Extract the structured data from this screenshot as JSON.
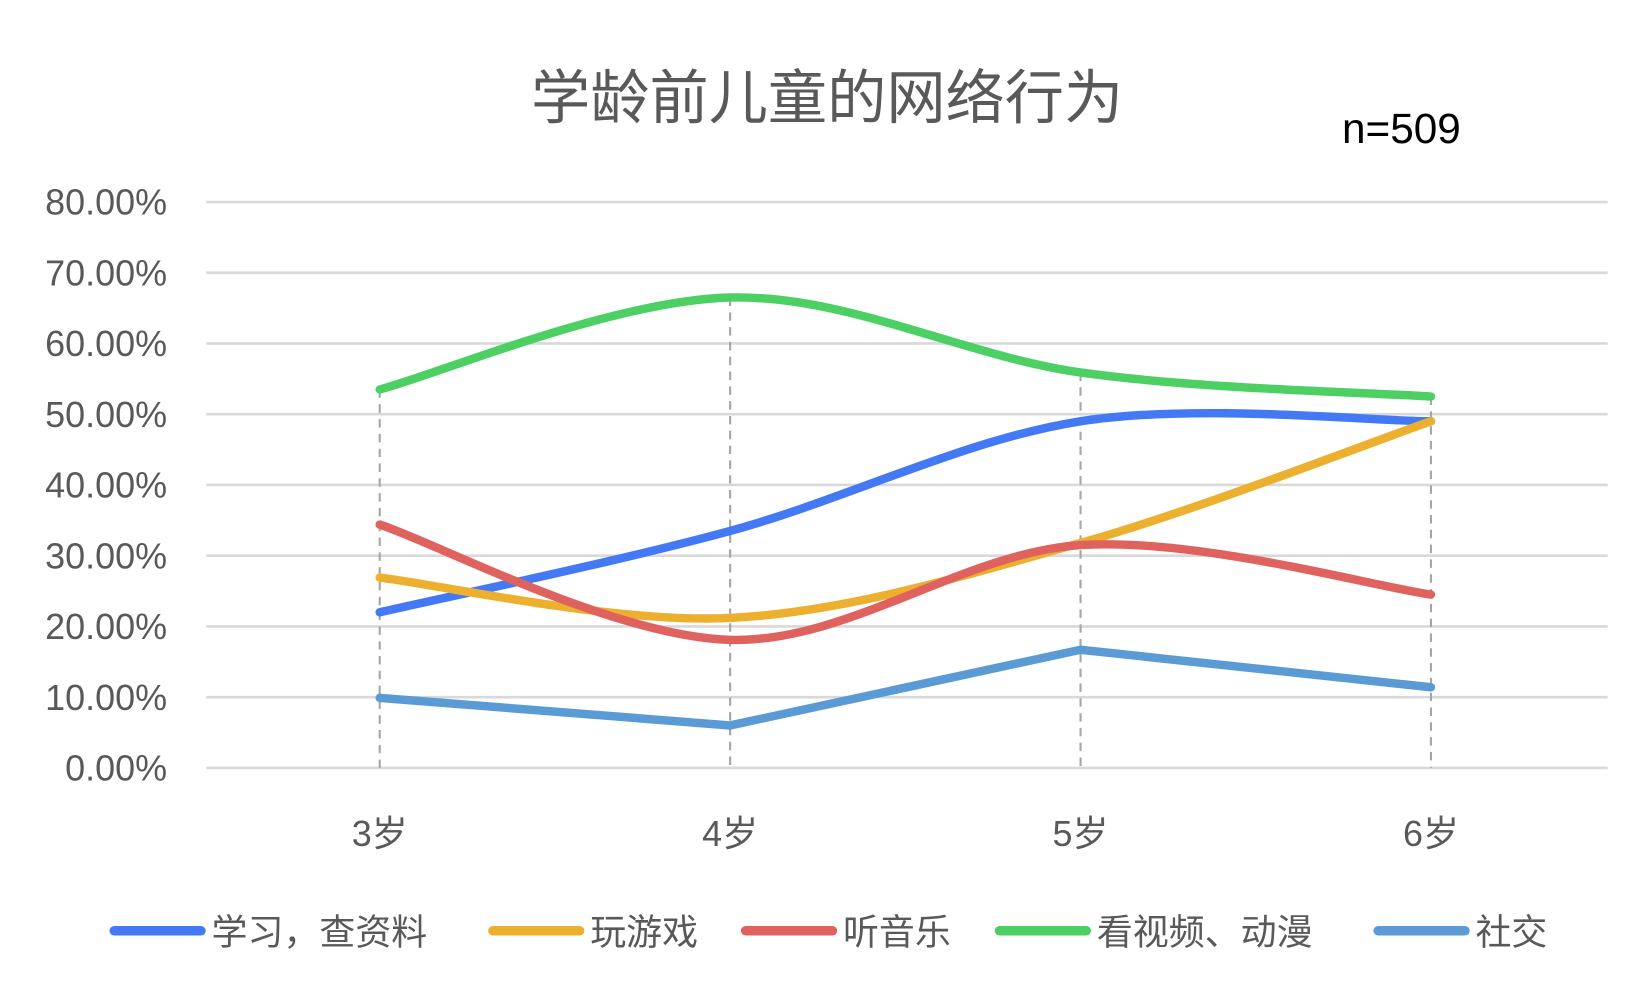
{
  "chart_data": {
    "type": "line",
    "title": "学龄前儿童的网络行为",
    "annotation": "n=509",
    "xlabel": "",
    "ylabel": "",
    "categories": [
      "3岁",
      "4岁",
      "5岁",
      "6岁"
    ],
    "ylim": [
      0,
      0.8
    ],
    "yticks": [
      "0.00%",
      "10.00%",
      "20.00%",
      "30.00%",
      "40.00%",
      "50.00%",
      "60.00%",
      "70.00%",
      "80.00%"
    ],
    "grid": true,
    "legend_position": "bottom",
    "series": [
      {
        "name": "学习，查资料",
        "color": "#4479F5",
        "smooth": true,
        "values": [
          0.22,
          0.335,
          0.49,
          0.49
        ]
      },
      {
        "name": "玩游戏",
        "color": "#ECB02E",
        "smooth": true,
        "values": [
          0.269,
          0.212,
          0.318,
          0.49
        ]
      },
      {
        "name": "听音乐",
        "color": "#E0625E",
        "smooth": true,
        "values": [
          0.344,
          0.181,
          0.315,
          0.245
        ]
      },
      {
        "name": "看视频、动漫",
        "color": "#4CD064",
        "smooth": true,
        "values": [
          0.535,
          0.665,
          0.559,
          0.525
        ]
      },
      {
        "name": "社交",
        "color": "#5B9BD5",
        "smooth": false,
        "values": [
          0.099,
          0.06,
          0.167,
          0.114
        ]
      }
    ]
  }
}
